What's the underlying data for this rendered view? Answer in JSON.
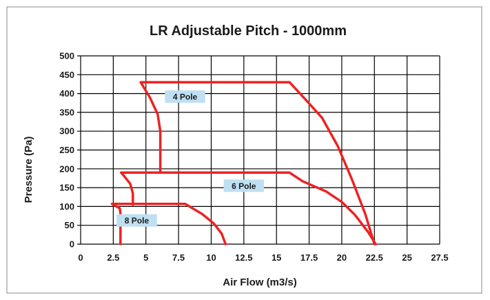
{
  "chart_data": {
    "type": "line",
    "title": "LR Adjustable Pitch - 1000mm",
    "xlabel": "Air Flow (m3/s)",
    "ylabel": "Pressure (Pa)",
    "xlim": [
      0,
      27.5
    ],
    "ylim": [
      0,
      500
    ],
    "x_ticks": [
      0,
      2.5,
      5,
      7.5,
      10,
      12.5,
      15,
      17.5,
      20,
      22.5,
      25,
      27.5
    ],
    "x_tick_labels": [
      "0",
      "2.5",
      "5",
      "7.5",
      "10",
      "12.5",
      "15",
      "17.5",
      "20",
      "22.5",
      "25",
      "27.5"
    ],
    "y_ticks": [
      0,
      50,
      100,
      150,
      200,
      250,
      300,
      350,
      400,
      450,
      500
    ],
    "y_tick_labels": [
      "0",
      "50",
      "100",
      "150",
      "200",
      "250",
      "300",
      "350",
      "400",
      "450",
      "500"
    ],
    "grid": true,
    "line_color": "#ee2222",
    "label_bg_color": "#bfe0f2",
    "series": [
      {
        "name": "4 Pole",
        "label_at": [
          8,
          392
        ],
        "points": [
          [
            6.1,
            190
          ],
          [
            6.1,
            220
          ],
          [
            6.1,
            300
          ],
          [
            5.9,
            345
          ],
          [
            5.3,
            390
          ],
          [
            4.6,
            430
          ],
          [
            16,
            430
          ],
          [
            17.2,
            385
          ],
          [
            18.5,
            335
          ],
          [
            19.7,
            260
          ],
          [
            20.8,
            170
          ],
          [
            21.8,
            80
          ],
          [
            22.5,
            0
          ]
        ]
      },
      {
        "name": "6 Pole",
        "label_at": [
          12.5,
          155
        ],
        "points": [
          [
            4,
            105
          ],
          [
            4,
            135
          ],
          [
            3.8,
            160
          ],
          [
            3.3,
            182
          ],
          [
            3.1,
            190
          ],
          [
            16,
            190
          ],
          [
            17,
            167
          ],
          [
            18.8,
            140
          ],
          [
            20,
            112
          ],
          [
            21,
            78
          ],
          [
            22,
            33
          ],
          [
            22.6,
            0
          ]
        ]
      },
      {
        "name": "8 Pole",
        "label_at": [
          4.3,
          63
        ],
        "points": [
          [
            3.05,
            0
          ],
          [
            3.05,
            60
          ],
          [
            3.05,
            80
          ],
          [
            3,
            95
          ],
          [
            2.4,
            107
          ],
          [
            8,
            107
          ],
          [
            9.3,
            80
          ],
          [
            10.2,
            55
          ],
          [
            10.8,
            28
          ],
          [
            11.1,
            0
          ]
        ]
      }
    ]
  }
}
